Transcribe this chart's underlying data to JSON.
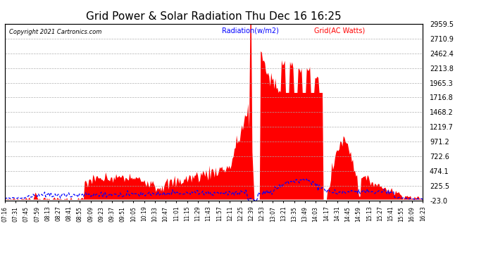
{
  "title": "Grid Power & Solar Radiation Thu Dec 16 16:25",
  "copyright": "Copyright 2021 Cartronics.com",
  "legend_radiation": "Radiation(w/m2)",
  "legend_grid": "Grid(AC Watts)",
  "y_ticks": [
    -23.0,
    225.5,
    474.1,
    722.6,
    971.2,
    1219.7,
    1468.2,
    1716.8,
    1965.3,
    2213.8,
    2462.4,
    2710.9,
    2959.5
  ],
  "y_min": -23.0,
  "y_max": 2959.5,
  "background_color": "#ffffff",
  "grid_color": "#aaaaaa",
  "radiation_color": "#ff0000",
  "grid_line_color": "#0000ff",
  "title_fontsize": 11,
  "x_labels": [
    "07:16",
    "07:31",
    "07:45",
    "07:59",
    "08:13",
    "08:27",
    "08:41",
    "08:55",
    "09:09",
    "09:23",
    "09:37",
    "09:51",
    "10:05",
    "10:19",
    "10:33",
    "10:47",
    "11:01",
    "11:15",
    "11:29",
    "11:43",
    "11:57",
    "12:11",
    "12:25",
    "12:39",
    "12:53",
    "13:07",
    "13:21",
    "13:35",
    "13:49",
    "14:03",
    "14:17",
    "14:31",
    "14:45",
    "14:59",
    "15:13",
    "15:27",
    "15:41",
    "15:55",
    "16:09",
    "16:23"
  ]
}
